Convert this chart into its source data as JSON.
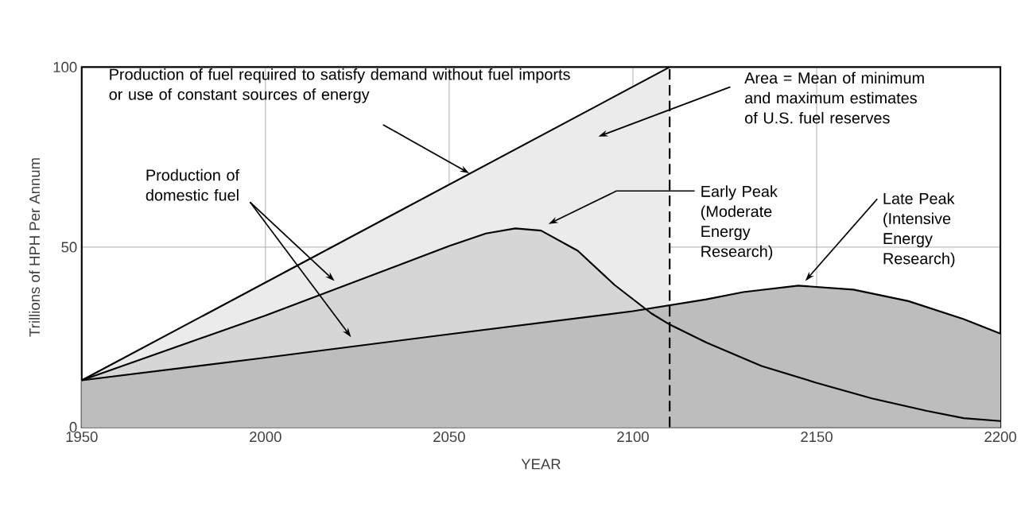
{
  "chart_data": {
    "type": "area",
    "xlabel": "YEAR",
    "ylabel": "Trillions of HPH Per Annum",
    "xlim": [
      1950,
      2200
    ],
    "ylim": [
      0,
      100
    ],
    "xticks": [
      1950,
      2000,
      2050,
      2100,
      2150,
      2200
    ],
    "yticks": [
      0,
      50,
      100
    ],
    "grid": true,
    "series": [
      {
        "name": "Production of fuel required to satisfy demand without fuel imports or use of constant sources of energy",
        "color": "#000000",
        "x": [
          1950,
          2110
        ],
        "values": [
          13,
          100
        ]
      },
      {
        "name": "Early Peak (Moderate Energy Research)",
        "color": "#000000",
        "x": [
          1950,
          2000,
          2050,
          2060,
          2068,
          2075,
          2085,
          2095,
          2105,
          2110,
          2120,
          2135,
          2150,
          2165,
          2180,
          2190,
          2200
        ],
        "values": [
          13,
          31,
          50.3,
          53.8,
          55.2,
          54.6,
          49,
          39.5,
          31.6,
          28.5,
          23.5,
          17,
          12.3,
          8,
          4.5,
          2.5,
          1.7
        ]
      },
      {
        "name": "Late Peak (Intensive Energy Research)",
        "color": "#000000",
        "x": [
          1950,
          2000,
          2050,
          2100,
          2120,
          2130,
          2145,
          2160,
          2175,
          2190,
          2200
        ],
        "values": [
          13,
          19.3,
          25.8,
          32.2,
          35.5,
          37.5,
          39.3,
          38.2,
          35,
          30,
          26
        ]
      }
    ],
    "ref_lines": [
      {
        "axis": "x",
        "value": 2110,
        "line_style": "dashed",
        "color": "#000000"
      }
    ],
    "annotations": [
      "Area = Mean of minimum and maximum estimates of U.S. fuel reserves",
      "Production of domestic fuel"
    ]
  }
}
